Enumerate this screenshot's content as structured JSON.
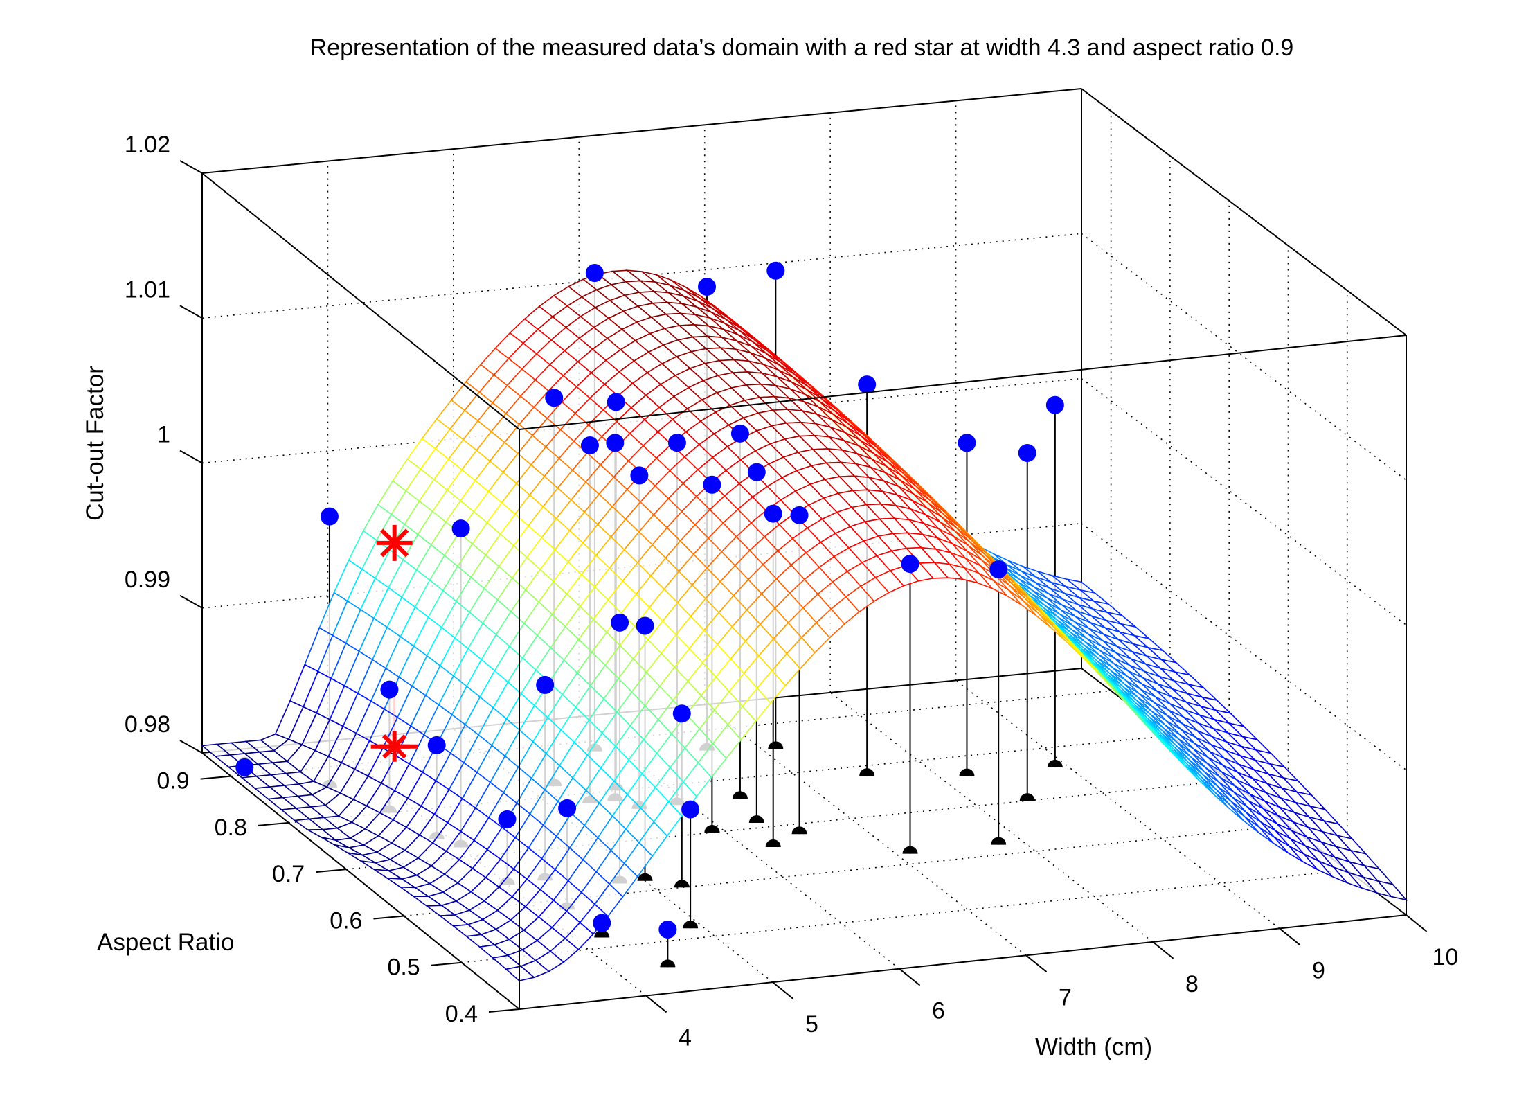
{
  "chart_data": {
    "type": "surface3d",
    "title": "Representation of the measured data’s domain with a red star at width 4.3 and aspect ratio 0.9",
    "xlabel": "Width (cm)",
    "ylabel": "Aspect Ratio",
    "zlabel": "Cut-out Factor",
    "xlim": [
      3,
      10
    ],
    "ylim": [
      0.4,
      0.95
    ],
    "zlim": [
      0.98,
      1.02
    ],
    "x_ticks": [
      "4",
      "5",
      "6",
      "7",
      "8",
      "9",
      "10"
    ],
    "y_ticks": [
      "0.4",
      "0.5",
      "0.6",
      "0.7",
      "0.8",
      "0.9"
    ],
    "z_ticks": [
      "0.98",
      "0.99",
      "1",
      "1.01",
      "1.02"
    ],
    "grid": true,
    "colormap": "jet",
    "colors": {
      "points": "#0000ff",
      "stems": "#000000",
      "star": "#ff0000"
    },
    "highlight": {
      "label": "red star",
      "width": 4.3,
      "aspect_ratio": 0.9,
      "cutout_factor": 0.995,
      "color": "#ff0000"
    },
    "measured_points": [
      {
        "width": 3.2,
        "aspect_ratio": 0.92,
        "cutout_factor": 0.9798
      },
      {
        "width": 3.6,
        "aspect_ratio": 0.86,
        "cutout_factor": 0.9987
      },
      {
        "width": 4.0,
        "aspect_ratio": 0.72,
        "cutout_factor": 1.002
      },
      {
        "width": 3.8,
        "aspect_ratio": 0.8,
        "cutout_factor": 0.9885
      },
      {
        "width": 3.9,
        "aspect_ratio": 0.74,
        "cutout_factor": 0.9865
      },
      {
        "width": 4.0,
        "aspect_ratio": 0.64,
        "cutout_factor": 0.9845
      },
      {
        "width": 4.2,
        "aspect_ratio": 0.58,
        "cutout_factor": 0.987
      },
      {
        "width": 4.3,
        "aspect_ratio": 0.64,
        "cutout_factor": 0.9935
      },
      {
        "width": 4.2,
        "aspect_ratio": 0.52,
        "cutout_factor": 0.981
      },
      {
        "width": 4.4,
        "aspect_ratio": 0.45,
        "cutout_factor": 0.9826
      },
      {
        "width": 4.8,
        "aspect_ratio": 0.62,
        "cutout_factor": 0.998
      },
      {
        "width": 5.0,
        "aspect_ratio": 0.62,
        "cutout_factor": 0.9976
      },
      {
        "width": 5.2,
        "aspect_ratio": 0.6,
        "cutout_factor": 0.992
      },
      {
        "width": 4.9,
        "aspect_ratio": 0.52,
        "cutout_factor": 0.9882
      },
      {
        "width": 5.2,
        "aspect_ratio": 0.82,
        "cutout_factor": 1.0068
      },
      {
        "width": 5.3,
        "aspect_ratio": 0.78,
        "cutout_factor": 1.0047
      },
      {
        "width": 5.5,
        "aspect_ratio": 0.78,
        "cutout_factor": 1.0047
      },
      {
        "width": 5.6,
        "aspect_ratio": 0.76,
        "cutout_factor": 1.003
      },
      {
        "width": 5.6,
        "aspect_ratio": 0.8,
        "cutout_factor": 1.0068
      },
      {
        "width": 5.8,
        "aspect_ratio": 0.88,
        "cutout_factor": 1.013
      },
      {
        "width": 5.9,
        "aspect_ratio": 0.76,
        "cutout_factor": 1.005
      },
      {
        "width": 5.9,
        "aspect_ratio": 0.7,
        "cutout_factor": 1.004
      },
      {
        "width": 6.2,
        "aspect_ratio": 0.66,
        "cutout_factor": 1.003
      },
      {
        "width": 6.3,
        "aspect_ratio": 0.71,
        "cutout_factor": 1.0042
      },
      {
        "width": 6.4,
        "aspect_ratio": 0.76,
        "cutout_factor": 1.0052
      },
      {
        "width": 6.5,
        "aspect_ratio": 0.68,
        "cutout_factor": 1.002
      },
      {
        "width": 6.6,
        "aspect_ratio": 0.86,
        "cutout_factor": 1.012
      },
      {
        "width": 7.1,
        "aspect_ratio": 0.85,
        "cutout_factor": 1.013
      },
      {
        "width": 7.1,
        "aspect_ratio": 0.62,
        "cutout_factor": 1.0
      },
      {
        "width": 7.5,
        "aspect_ratio": 0.78,
        "cutout_factor": 1.007
      },
      {
        "width": 7.8,
        "aspect_ratio": 0.62,
        "cutout_factor": 0.999
      },
      {
        "width": 8.2,
        "aspect_ratio": 0.76,
        "cutout_factor": 1.003
      },
      {
        "width": 8.4,
        "aspect_ratio": 0.7,
        "cutout_factor": 1.004
      },
      {
        "width": 8.9,
        "aspect_ratio": 0.76,
        "cutout_factor": 1.005
      }
    ]
  }
}
